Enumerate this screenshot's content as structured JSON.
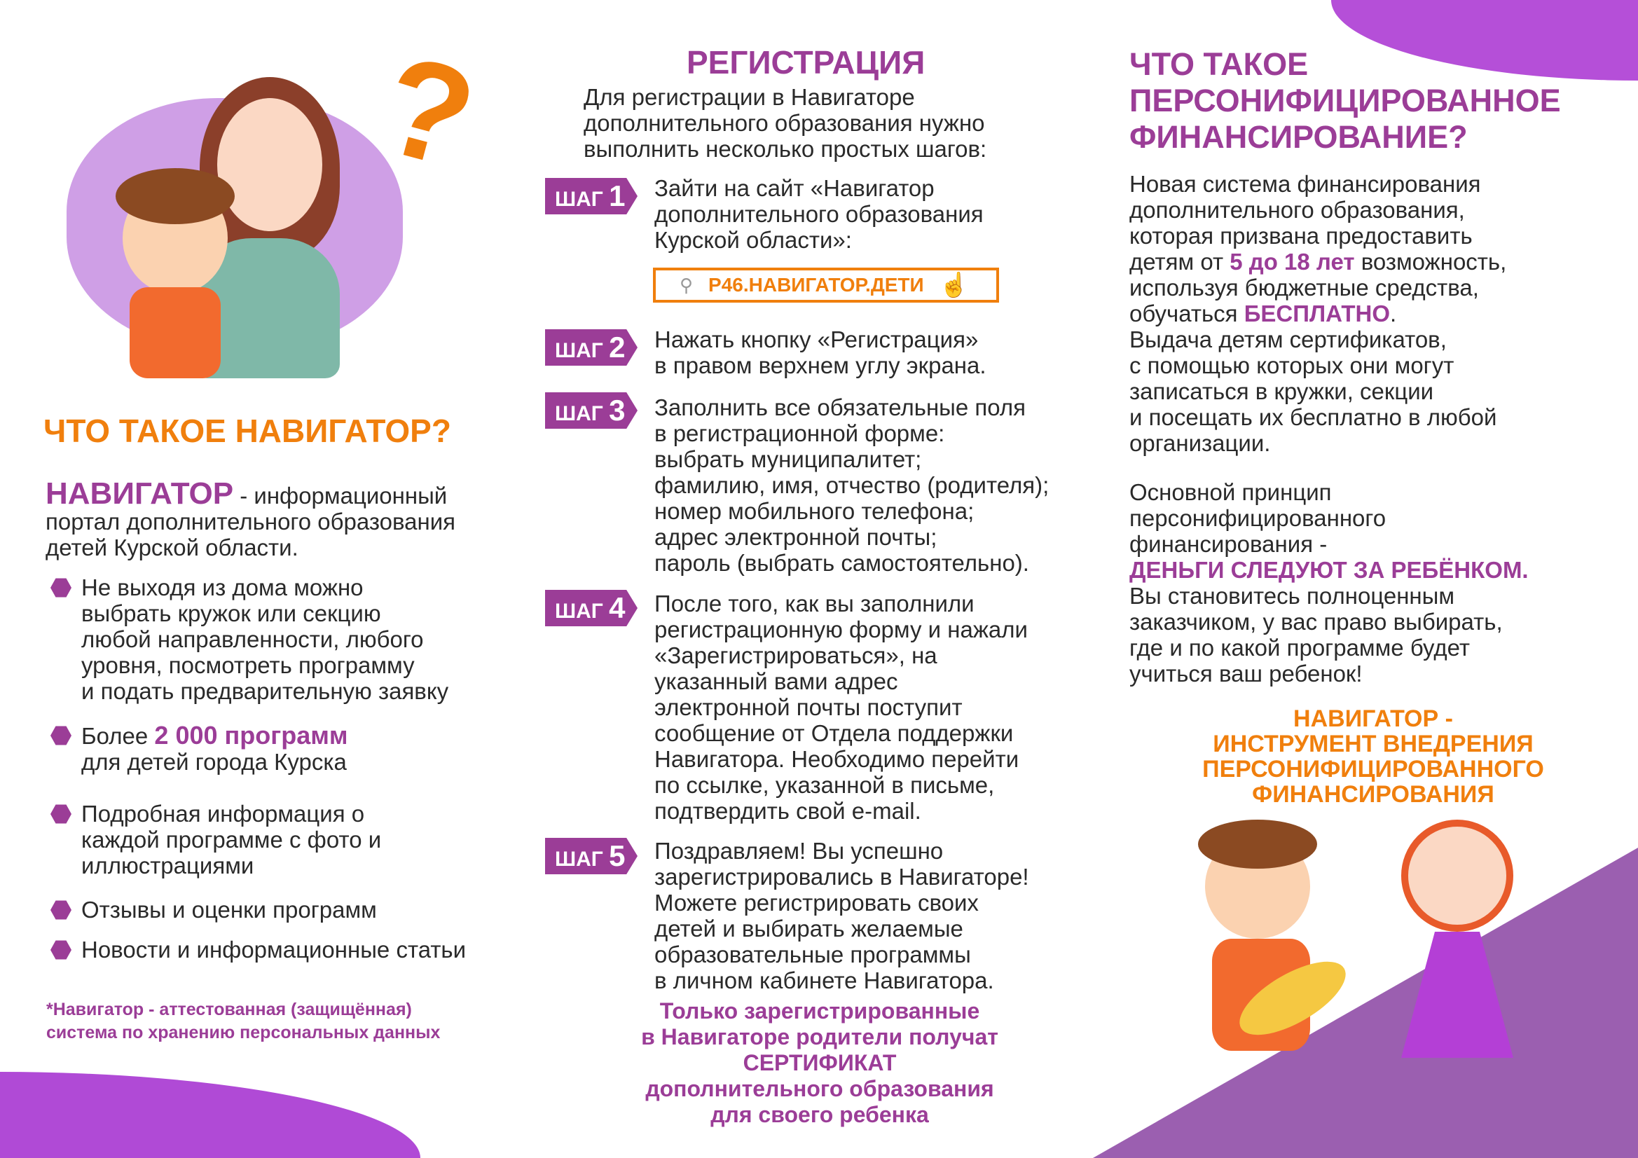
{
  "col1": {
    "question_mark": "?",
    "heading": "ЧТО ТАКОЕ НАВИГАТОР?",
    "intro_bold": "НАВИГАТОР",
    "intro_rest": " - информационный\nпортал дополнительного образования\nдетей Курской области.",
    "bullets": [
      {
        "text": "Не выходя из дома  можно\nвыбрать кружок или секцию\nлюбой направленности, любого\nуровня, посмотреть программу\nи подать предварительную заявку"
      },
      {
        "pre": "Более ",
        "bold": "2 000 программ",
        "post": "\nдля детей города Курска"
      },
      {
        "text": "Подробная информация о\nкаждой программе с фото и\nиллюстрациями"
      },
      {
        "text": "Отзывы и оценки программ"
      },
      {
        "text": "Новости и информационные статьи"
      }
    ],
    "footnote": "*Навигатор - аттестованная (защищённая)\nсистема по хранению персональных данных"
  },
  "col2": {
    "heading": "РЕГИСТРАЦИЯ",
    "intro": "Для регистрации в Навигаторе\nдополнительного образования нужно\nвыполнить несколько простых шагов:",
    "step_label": "ШАГ",
    "steps": [
      {
        "num": "1",
        "text": "Зайти на сайт «Навигатор\nдополнительного образования\nКурской области»:"
      },
      {
        "num": "2",
        "text": "Нажать кнопку «Регистрация»\nв правом верхнем углу экрана."
      },
      {
        "num": "3",
        "text": "Заполнить все обязательные поля\nв регистрационной форме:\nвыбрать муниципалитет;\nфамилию, имя, отчество (родителя);\nномер мобильного телефона;\nадрес электронной почты;\nпароль (выбрать самостоятельно)."
      },
      {
        "num": "4",
        "text": "После того, как вы заполнили\nрегистрационную форму и нажали\n«Зарегистрироваться», на\nуказанный вами адрес\nэлектронной почты поступит\nсообщение от Отдела поддержки\nНавигатора. Необходимо перейти\nпо ссылке, указанной в письме,\nподтвердить свой e-mail."
      },
      {
        "num": "5",
        "text": "Поздравляем! Вы успешно\nзарегистрировались в Навигаторе!\nМожете регистрировать своих\nдетей и выбирать желаемые\nобразовательные программы\nв личном кабинете Навигатора."
      }
    ],
    "site_url": "Р46.НАВИГАТОР.ДЕТИ",
    "closing": "Только зарегистрированные\nв Навигаторе родители получат\nСЕРТИФИКАТ\nдополнительного образования\nдля своего ребенка"
  },
  "col3": {
    "heading": "ЧТО ТАКОЕ\nПЕРСОНИФИЦИРОВАННОЕ\nФИНАНСИРОВАНИЕ?",
    "p1_a": "Новая система финансирования\nдополнительного образования,\nкоторая призвана предоставить\nдетям от ",
    "p1_bold": "5 до 18 лет",
    "p1_b": " возможность,\nиспользуя бюджетные средства,\nобучаться ",
    "p1_bold2": "БЕСПЛАТНО",
    "p1_c": ".\nВыдача детям сертификатов,\nс помощью которых они могут\nзаписаться в кружки, секции\nи посещать их бесплатно в любой\nорганизации.",
    "p2": "Основной принцип\nперсонифицированного\nфинансирования -",
    "p2_bold": "ДЕНЬГИ СЛЕДУЮТ ЗА РЕБЁНКОМ.",
    "p3": "Вы становитесь полноценным\nзаказчиком, у вас право выбирать,\nгде и по какой программе будет\nучиться ваш ребенок!",
    "slogan": "НАВИГАТОР -\nИНСТРУМЕНТ ВНЕДРЕНИЯ\nПЕРСОНИФИЦИРОВАННОГО\nФИНАНСИРОВАНИЯ"
  },
  "colors": {
    "purple": "#9b3d97",
    "orange": "#f07f0d",
    "lilac": "#c98be0"
  }
}
